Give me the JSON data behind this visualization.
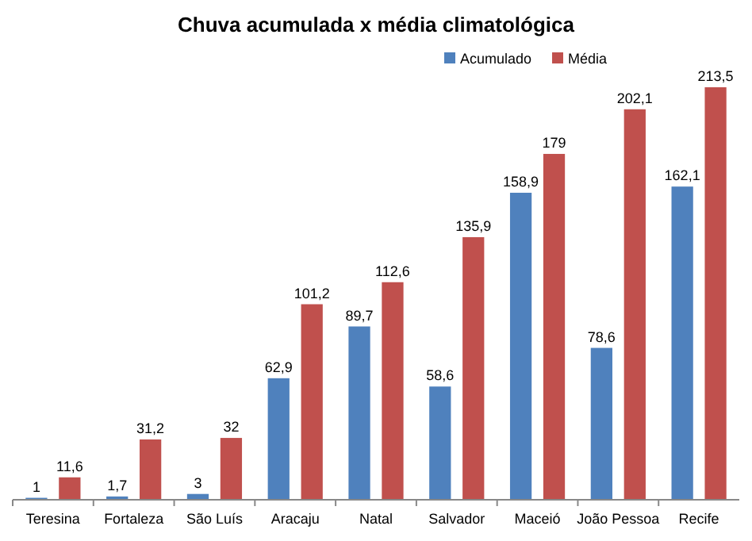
{
  "chart_data": {
    "type": "bar",
    "title": "Chuva acumulada  x média climatológica",
    "categories": [
      "Teresina",
      "Fortaleza",
      "São Luís",
      "Aracaju",
      "Natal",
      "Salvador",
      "Maceió",
      "João Pessoa",
      "Recife"
    ],
    "legend": "top",
    "series": [
      {
        "name": "Acumulado",
        "color": "#4f81bd",
        "values": [
          1,
          1.7,
          3,
          62.9,
          89.7,
          58.6,
          158.9,
          78.6,
          162.1
        ],
        "value_labels": [
          "1",
          "1,7",
          "3",
          "62,9",
          "89,7",
          "58,6",
          "158,9",
          "78,6",
          "162,1"
        ]
      },
      {
        "name": "Média",
        "color": "#c0504d",
        "values": [
          11.6,
          31.2,
          32,
          101.2,
          112.6,
          135.9,
          179,
          202.1,
          213.5
        ],
        "value_labels": [
          "11,6",
          "31,2",
          "32",
          "101,2",
          "112,6",
          "135,9",
          "179",
          "202,1",
          "213,5"
        ]
      }
    ]
  }
}
